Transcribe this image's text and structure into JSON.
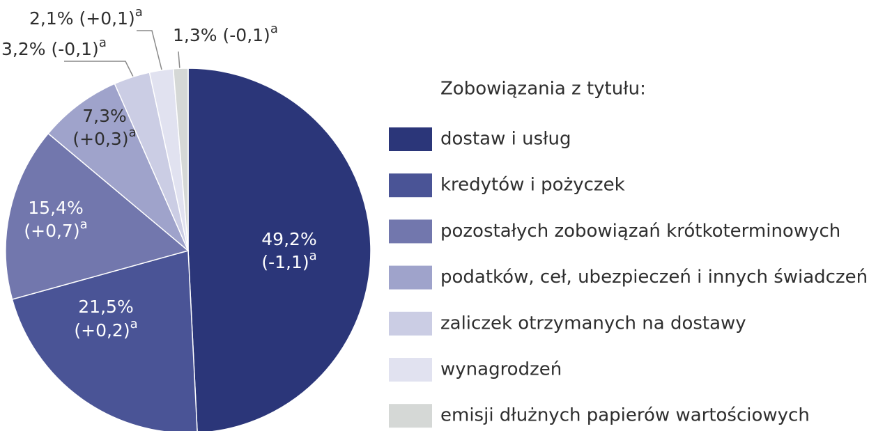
{
  "chart_data": {
    "type": "pie",
    "legend_title": "Zobowiązania z tytułu:",
    "categories": [
      "dostaw i usług",
      "kredytów i pożyczek",
      "pozostałych zobowiązań krótkoterminowych",
      "podatków, ceł, ubezpieczeń i innych świadczeń",
      "zaliczek otrzymanych na dostawy",
      "wynagrodzeń",
      "emisji dłużnych papierów wartościowych"
    ],
    "values": [
      49.2,
      21.5,
      15.4,
      7.3,
      3.2,
      2.1,
      1.3
    ],
    "value_labels": [
      "49,2%",
      "21,5%",
      "15,4%",
      "7,3%",
      "3,2%",
      "2,1%",
      "1,3%"
    ],
    "change_labels": [
      "(-1,1)",
      "(+0,2)",
      "(+0,7)",
      "(+0,3)",
      "(-0,1)",
      "(+0,1)",
      "(-0,1)"
    ],
    "note_marker": "a",
    "colors": [
      "#2b3679",
      "#4a5496",
      "#7277ad",
      "#9fa3cb",
      "#cbcde4",
      "#e1e2f0",
      "#d5d8d6"
    ],
    "legend": "right"
  }
}
